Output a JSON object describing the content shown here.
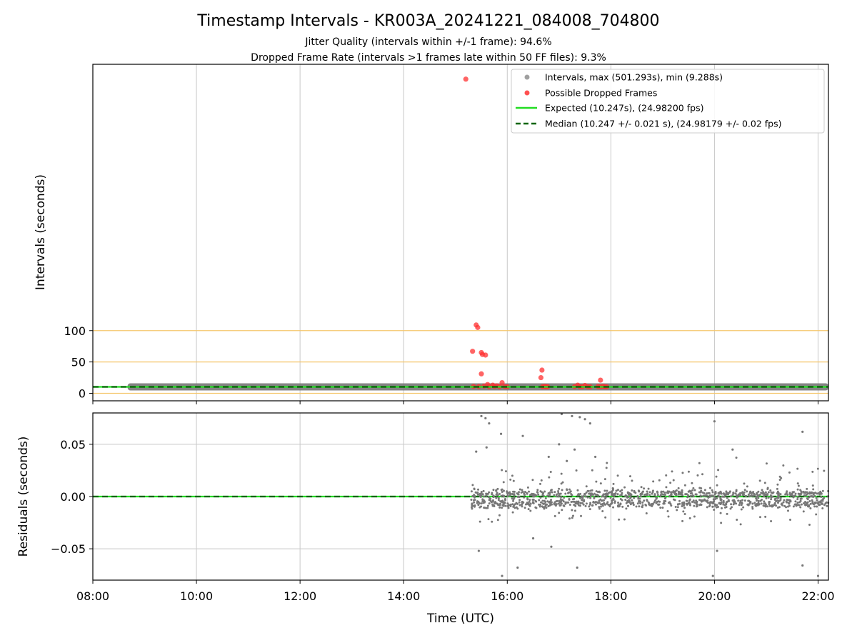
{
  "chart_data": [
    {
      "type": "scatter",
      "title": "Timestamp Intervals - KR003A_20241221_084008_704800",
      "subtitle_lines": [
        "Jitter Quality (intervals within +/-1 frame): 94.6%",
        "Dropped Frame Rate (intervals >1 frames late within 50 FF files): 9.3%"
      ],
      "xlabel": "",
      "ylabel": "Intervals (seconds)",
      "x_unit": "hours UTC",
      "xlim": [
        8.0,
        22.2
      ],
      "ylim": [
        -12,
        525
      ],
      "yticks": [
        0,
        50,
        100
      ],
      "ytick_labels": [
        "0",
        "50",
        "100"
      ],
      "reference_lines": [
        0,
        50,
        100
      ],
      "reference_color": "#f5c66b",
      "grid": "x",
      "legend_position": "upper right",
      "legend": [
        {
          "label": "Intervals, max (501.293s), min (9.288s)",
          "kind": "marker",
          "color": "#a0a0a0"
        },
        {
          "label": "Possible Dropped Frames",
          "kind": "marker",
          "color": "#ff5050"
        },
        {
          "label": "Expected (10.247s), (24.98200 fps)",
          "kind": "line",
          "color": "#22dd22"
        },
        {
          "label": "Median (10.247 +/- 0.021 s), (24.98179 +/- 0.02 fps)",
          "kind": "dashed",
          "color": "#006400"
        }
      ],
      "series": [
        {
          "name": "Intervals, max (501.293s), min (9.288s)",
          "kind": "band",
          "x_start": 8.67,
          "x_end": 22.2,
          "y": 10.247,
          "color": "#777777"
        },
        {
          "name": "Possible Dropped Frames",
          "color": "#ff3030",
          "points": [
            [
              15.2,
              501.3
            ],
            [
              15.4,
              109
            ],
            [
              15.43,
              105
            ],
            [
              15.33,
              67
            ],
            [
              15.5,
              65
            ],
            [
              15.52,
              62
            ],
            [
              15.58,
              61
            ],
            [
              15.5,
              31
            ],
            [
              16.67,
              37
            ],
            [
              16.65,
              25
            ],
            [
              17.8,
              21
            ],
            [
              15.9,
              17
            ],
            [
              15.62,
              14
            ],
            [
              15.72,
              13
            ],
            [
              15.8,
              12
            ],
            [
              17.36,
              13
            ],
            [
              17.5,
              12.5
            ],
            [
              16.72,
              11
            ],
            [
              17.85,
              11
            ],
            [
              15.35,
              11
            ],
            [
              15.45,
              10.8
            ],
            [
              15.55,
              11.5
            ],
            [
              15.65,
              10.5
            ],
            [
              15.75,
              11
            ],
            [
              15.85,
              10.6
            ],
            [
              15.95,
              10.8
            ],
            [
              16.0,
              10.5
            ],
            [
              16.68,
              10.5
            ],
            [
              16.75,
              10.4
            ],
            [
              16.78,
              10.5
            ],
            [
              17.3,
              10.7
            ],
            [
              17.4,
              10.6
            ],
            [
              17.45,
              10.5
            ],
            [
              17.55,
              10.6
            ],
            [
              17.6,
              10.4
            ],
            [
              17.75,
              10.8
            ],
            [
              17.8,
              10.5
            ],
            [
              17.88,
              10.6
            ],
            [
              17.92,
              10.4
            ]
          ]
        },
        {
          "name": "Expected (10.247s), (24.98200 fps)",
          "kind": "hline",
          "y": 10.247,
          "color": "#22dd22"
        },
        {
          "name": "Median (10.247 +/- 0.021 s), (24.98179 +/- 0.02 fps)",
          "kind": "hline",
          "y": 10.247,
          "color": "#006400"
        }
      ]
    },
    {
      "type": "scatter",
      "title": "",
      "xlabel": "Time (UTC)",
      "ylabel": "Residuals (seconds)",
      "x_unit": "hours UTC",
      "xlim": [
        8.0,
        22.2
      ],
      "ylim": [
        -0.08,
        0.08
      ],
      "xticks": [
        8,
        10,
        12,
        14,
        16,
        18,
        20,
        22
      ],
      "xtick_labels": [
        "08:00",
        "10:00",
        "12:00",
        "14:00",
        "16:00",
        "18:00",
        "20:00",
        "22:00"
      ],
      "yticks": [
        -0.05,
        0.0,
        0.05
      ],
      "ytick_labels": [
        "−0.05",
        "0.00",
        "0.05"
      ],
      "grid": "both",
      "series": [
        {
          "name": "Expected (10.247s), (24.98200 fps)",
          "kind": "hline",
          "y": 0.0,
          "color": "#22dd22"
        },
        {
          "name": "Median (10.247 +/- 0.021 s), (24.98179 +/- 0.02 fps)",
          "kind": "hline",
          "y": 0.0,
          "color": "#006400"
        },
        {
          "kind": "scatter",
          "color": "#777777",
          "flat_x_range": [
            8.67,
            15.2
          ],
          "scatter_x_range": [
            15.3,
            22.2
          ],
          "typical_spread": 0.015,
          "outliers": [
            [
              15.5,
              0.077
            ],
            [
              15.58,
              0.075
            ],
            [
              15.65,
              0.07
            ],
            [
              15.88,
              0.06
            ],
            [
              16.3,
              0.058
            ],
            [
              17.05,
              0.079
            ],
            [
              17.25,
              0.077
            ],
            [
              17.4,
              0.076
            ],
            [
              17.5,
              0.074
            ],
            [
              17.6,
              0.07
            ],
            [
              16.2,
              -0.068
            ],
            [
              17.35,
              -0.068
            ],
            [
              15.45,
              -0.052
            ],
            [
              15.9,
              -0.076
            ],
            [
              16.85,
              -0.048
            ],
            [
              20.0,
              0.072
            ],
            [
              20.35,
              0.045
            ],
            [
              20.05,
              -0.052
            ],
            [
              19.97,
              -0.076
            ],
            [
              21.7,
              0.062
            ],
            [
              21.7,
              -0.066
            ],
            [
              22.0,
              -0.076
            ],
            [
              17.0,
              0.05
            ],
            [
              17.3,
              0.045
            ],
            [
              15.6,
              0.047
            ],
            [
              15.4,
              0.043
            ],
            [
              16.8,
              0.038
            ],
            [
              17.15,
              0.034
            ],
            [
              17.7,
              0.038
            ],
            [
              16.5,
              -0.04
            ]
          ]
        }
      ]
    }
  ]
}
